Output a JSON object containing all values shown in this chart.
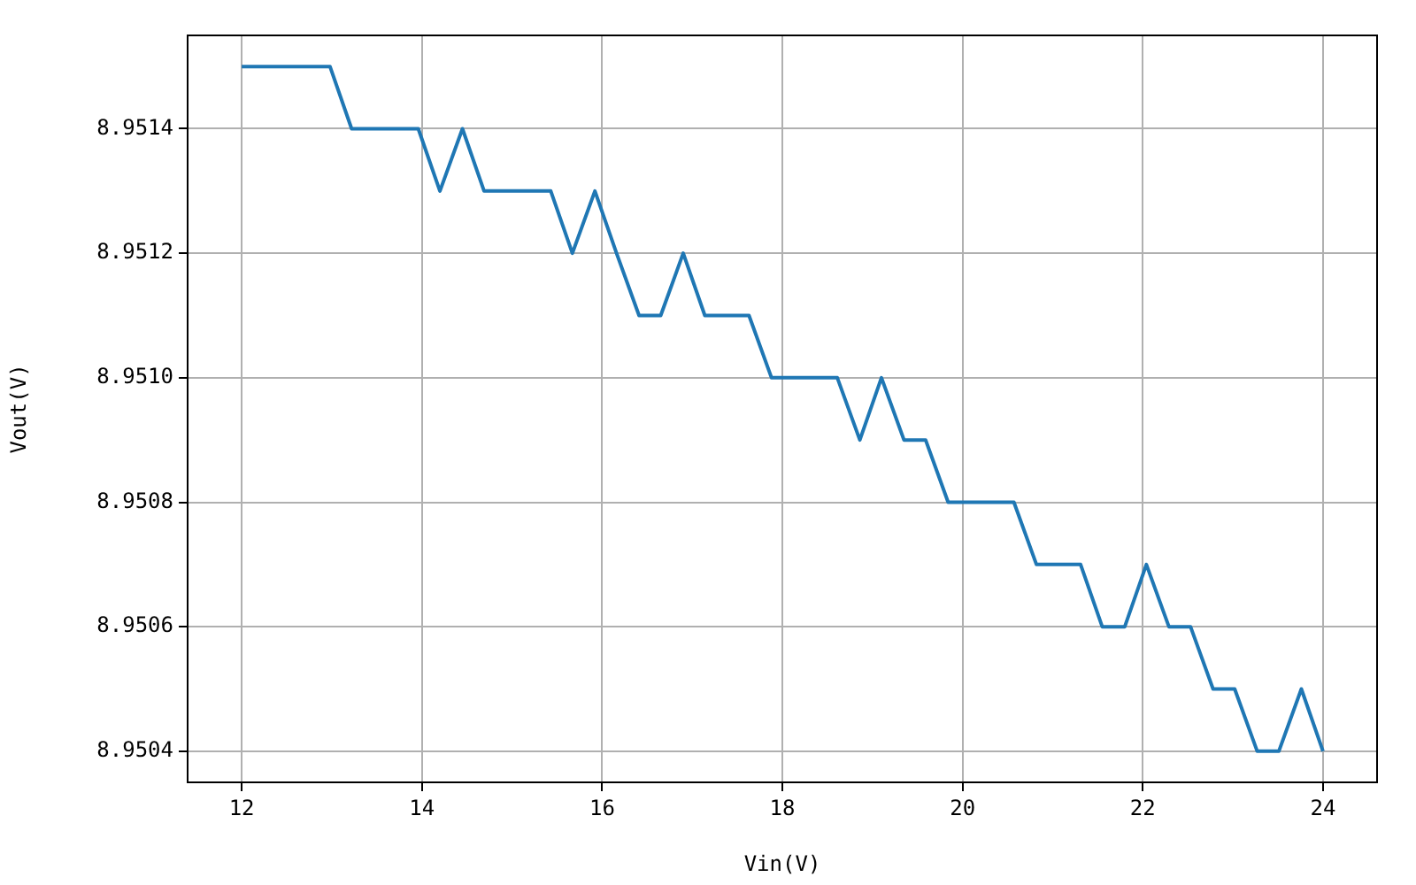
{
  "chart_data": {
    "type": "line",
    "xlabel": "Vin(V)",
    "ylabel": "Vout(V)",
    "grid": true,
    "legend": false,
    "marker": "none",
    "line_style": "solid",
    "xlim": [
      11.4,
      24.6
    ],
    "xticks": [
      12,
      14,
      16,
      18,
      20,
      22,
      24
    ],
    "ylim": [
      8.95035,
      8.95155
    ],
    "yticks": [
      {
        "value": 8.9504,
        "label": "8.9504"
      },
      {
        "value": 8.9506,
        "label": "8.9506"
      },
      {
        "value": 8.9508,
        "label": "8.9508"
      },
      {
        "value": 8.951,
        "label": "8.9510"
      },
      {
        "value": 8.9512,
        "label": "8.9512"
      },
      {
        "value": 8.9514,
        "label": "8.9514"
      }
    ],
    "x": [
      12.0,
      12.24,
      12.49,
      12.73,
      12.98,
      13.22,
      13.47,
      13.71,
      13.96,
      14.2,
      14.45,
      14.69,
      14.94,
      15.18,
      15.43,
      15.67,
      15.92,
      16.16,
      16.41,
      16.65,
      16.9,
      17.14,
      17.39,
      17.63,
      17.88,
      18.12,
      18.37,
      18.61,
      18.86,
      19.1,
      19.35,
      19.59,
      19.84,
      20.08,
      20.33,
      20.57,
      20.82,
      21.06,
      21.31,
      21.55,
      21.8,
      22.04,
      22.29,
      22.53,
      22.78,
      23.02,
      23.27,
      23.51,
      23.76,
      24.0
    ],
    "series": [
      {
        "color": "#1f77b4",
        "values": [
          8.9515,
          8.9515,
          8.9515,
          8.9515,
          8.9515,
          8.9514,
          8.9514,
          8.9514,
          8.9514,
          8.9513,
          8.9514,
          8.9513,
          8.9513,
          8.9513,
          8.9513,
          8.9512,
          8.9513,
          8.9512,
          8.9511,
          8.9511,
          8.9512,
          8.9511,
          8.9511,
          8.9511,
          8.951,
          8.951,
          8.951,
          8.951,
          8.9509,
          8.951,
          8.9509,
          8.9509,
          8.9508,
          8.9508,
          8.9508,
          8.9508,
          8.9507,
          8.9507,
          8.9507,
          8.9506,
          8.9506,
          8.9507,
          8.9506,
          8.9506,
          8.9505,
          8.9505,
          8.9504,
          8.9504,
          8.9505,
          8.9504
        ]
      }
    ]
  }
}
